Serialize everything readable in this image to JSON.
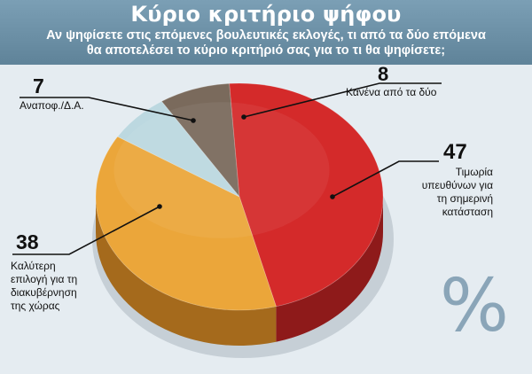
{
  "chart_data": {
    "type": "pie",
    "title": "Κύριο κριτήριο ψήφου",
    "subtitle_lines": [
      "Αν ψηφίσετε στις επόμενες βουλευτικές εκλογές, τι από τα δύο επόμενα",
      "θα αποτελέσει το κύριο κριτήριό σας για το τι θα ψηφίσετε;"
    ],
    "unit_symbol": "%",
    "slices": [
      {
        "value": 47,
        "value_text": "47",
        "label_lines": [
          "Τιμωρία",
          "υπευθύνων για",
          "τη σημερινή",
          "κατάσταση"
        ],
        "color": "#d42a2a",
        "side_color": "#8e1a1a"
      },
      {
        "value": 38,
        "value_text": "38",
        "label_lines": [
          "Καλύτερη",
          "επιλογή για τη",
          "διακυβέρνηση",
          "της χώρας"
        ],
        "color": "#eba63a",
        "side_color": "#a56a1c"
      },
      {
        "value": 7,
        "value_text": "7",
        "label_lines": [
          "Αναποφ./Δ.Α."
        ],
        "color": "#bcd8e0",
        "side_color": "#7f9ea8"
      },
      {
        "value": 8,
        "value_text": "8",
        "label_lines": [
          "Κανένα από τα δύο"
        ],
        "color": "#7a6a5c",
        "side_color": "#4a3f36"
      }
    ]
  }
}
